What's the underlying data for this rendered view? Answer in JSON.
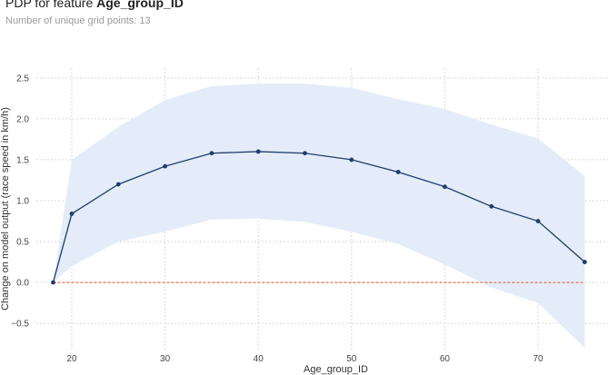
{
  "title_prefix": "PDP for feature ",
  "title_feature": "Age_group_ID",
  "subtitle": "Number of unique grid points: 13",
  "colors": {
    "line": "#1f3d6b",
    "band": "#e3ecf8",
    "baseline": "#e8705a",
    "grid": "#d9d9d9"
  },
  "chart_data": {
    "type": "line",
    "title": "PDP for feature Age_group_ID",
    "subtitle": "Number of unique grid points: 13",
    "xlabel": "Age_group_ID",
    "ylabel": "Change on model output (race speed in km/h)",
    "xlim": [
      16.2,
      77.5
    ],
    "ylim": [
      -0.82,
      2.62
    ],
    "xticks": [
      20,
      30,
      40,
      50,
      60,
      70
    ],
    "yticks": [
      -0.5,
      0.0,
      0.5,
      1.0,
      1.5,
      2.0,
      2.5
    ],
    "ytick_labels": [
      "−0.5",
      "0.0",
      "0.5",
      "1.0",
      "1.5",
      "2.0",
      "2.5"
    ],
    "grid": true,
    "x": [
      18,
      20,
      25,
      30,
      35,
      40,
      45,
      50,
      55,
      60,
      65,
      70,
      75
    ],
    "series": [
      {
        "values": [
          0.0,
          0.84,
          1.2,
          1.42,
          1.58,
          1.6,
          1.58,
          1.5,
          1.35,
          1.17,
          0.93,
          0.75,
          0.25
        ]
      }
    ],
    "band_upper": [
      0.0,
      1.5,
      1.9,
      2.23,
      2.4,
      2.43,
      2.43,
      2.38,
      2.24,
      2.12,
      1.93,
      1.76,
      1.3
    ],
    "band_lower": [
      0.0,
      0.2,
      0.5,
      0.62,
      0.77,
      0.78,
      0.74,
      0.62,
      0.47,
      0.22,
      -0.06,
      -0.25,
      -0.8
    ],
    "baseline": 0.0
  }
}
